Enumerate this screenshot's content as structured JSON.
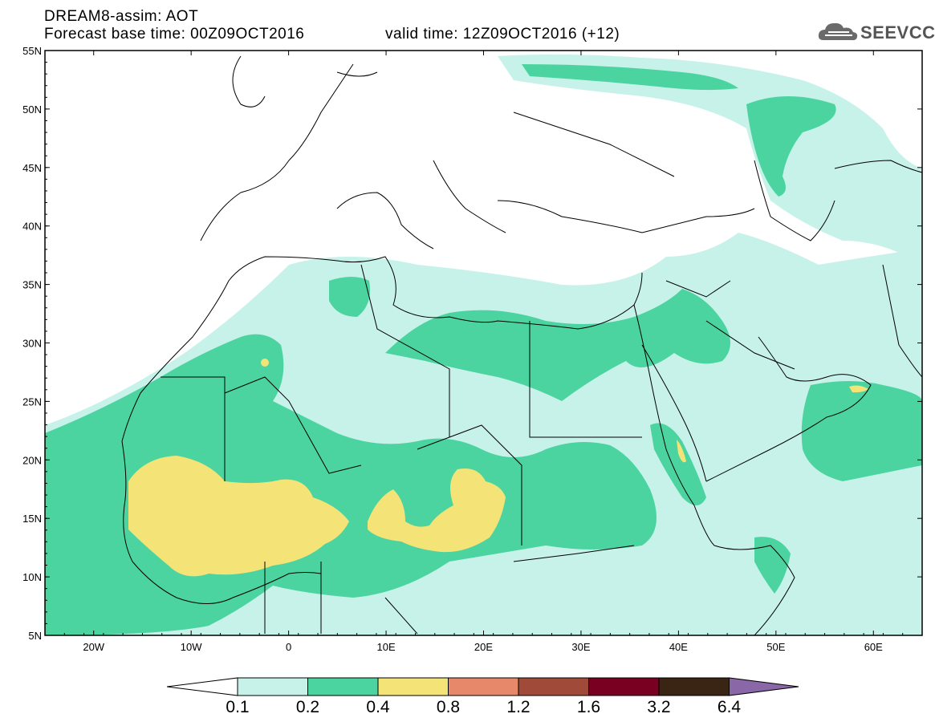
{
  "header": {
    "title": "DREAM8-assim: AOT",
    "base_time": "Forecast base time: 00Z09OCT2016",
    "valid_time": "valid time: 12Z09OCT2016 (+12)"
  },
  "logo": {
    "text": "SEEVCCC",
    "icon": "cloud-icon"
  },
  "map": {
    "lat_labels": [
      "55N",
      "50N",
      "45N",
      "40N",
      "35N",
      "30N",
      "25N",
      "20N",
      "15N",
      "10N",
      "5N"
    ],
    "lon_labels": [
      "20W",
      "10W",
      "0",
      "10E",
      "20E",
      "30E",
      "40E",
      "50E",
      "60E"
    ],
    "lat_range": [
      5,
      55
    ],
    "lon_range": [
      -25,
      65
    ]
  },
  "legend": {
    "labels": [
      "0.1",
      "0.2",
      "0.4",
      "0.8",
      "1.2",
      "1.6",
      "3.2",
      "6.4"
    ],
    "colors": [
      "#ffffff",
      "#c7f2ea",
      "#4cd4a0",
      "#f4e478",
      "#e8886a",
      "#a04a3a",
      "#7a0022",
      "#3a2414",
      "#8a68a8"
    ]
  }
}
